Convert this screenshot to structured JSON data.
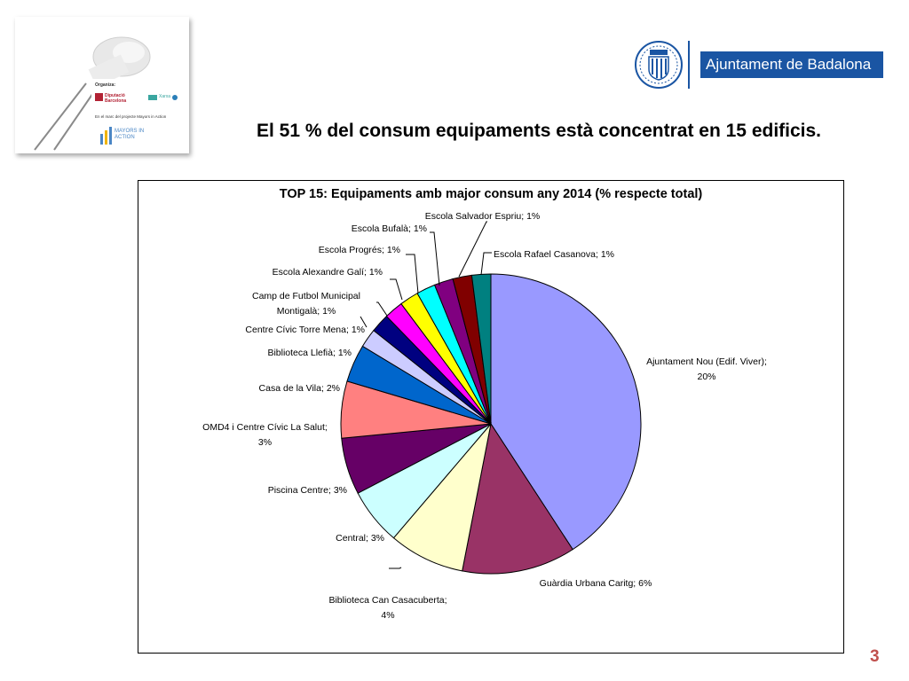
{
  "thumbnail": {
    "organiza_label": "Organiza:",
    "org1": "Diputació Barcelona",
    "org2": "Xarxa",
    "note": "En el marc del projecte Mayors in Action",
    "logo_text": "MAYORS IN ACTION"
  },
  "header": {
    "brand": "Ajuntament de Badalona",
    "title": "El 51 % del consum equipaments està concentrat en 15 edificis."
  },
  "page_number": "3",
  "colors": {
    "brand_blue": "#1a55a3",
    "page_number": "#c0504d"
  },
  "chart_data": {
    "type": "pie",
    "title": "TOP 15: Equipaments amb major consum any 2014 (% respecte total)",
    "slices": [
      {
        "name": "Ajuntament Nou (Edif. Viver)",
        "value": 20,
        "label": "Ajuntament Nou (Edif. Viver);",
        "label2": "20%",
        "color": "#9999ff"
      },
      {
        "name": "Guàrdia Urbana Caritg",
        "value": 6,
        "label": "Guàrdia Urbana Caritg; 6%",
        "color": "#993366"
      },
      {
        "name": "Biblioteca Can Casacuberta",
        "value": 4,
        "label": "Biblioteca Can Casacuberta;",
        "label2": "4%",
        "color": "#ffffcc"
      },
      {
        "name": "Central",
        "value": 3,
        "label": "Central; 3%",
        "color": "#ccffff"
      },
      {
        "name": "Piscina Centre",
        "value": 3,
        "label": "Piscina Centre; 3%",
        "color": "#660066"
      },
      {
        "name": "OMD4 i Centre Cívic La Salut",
        "value": 3,
        "label": "OMD4 i Centre Cívic La Salut;",
        "label2": "3%",
        "color": "#ff8080"
      },
      {
        "name": "Casa de la Vila",
        "value": 2,
        "label": "Casa de la Vila; 2%",
        "color": "#0066cc"
      },
      {
        "name": "Biblioteca Llefià",
        "value": 1,
        "label": "Biblioteca Llefià; 1%",
        "color": "#ccccff"
      },
      {
        "name": "Centre Cívic Torre Mena",
        "value": 1,
        "label": "Centre Cívic Torre Mena; 1%",
        "color": "#000080"
      },
      {
        "name": "Camp de Futbol Municipal Montigalà",
        "value": 1,
        "label": "Camp de Futbol Municipal",
        "label2": "Montigalà; 1%",
        "color": "#ff00ff"
      },
      {
        "name": "Escola Alexandre Galí",
        "value": 1,
        "label": "Escola Alexandre Galí; 1%",
        "color": "#ffff00"
      },
      {
        "name": "Escola Progrés",
        "value": 1,
        "label": "Escola Progrés; 1%",
        "color": "#00ffff"
      },
      {
        "name": "Escola Bufalà",
        "value": 1,
        "label": "Escola Bufalà; 1%",
        "color": "#800080"
      },
      {
        "name": "Escola Salvador Espriu",
        "value": 1,
        "label": "Escola Salvador Espriu; 1%",
        "color": "#800000"
      },
      {
        "name": "Escola Rafael Casanova",
        "value": 1,
        "label": "Escola Rafael Casanova; 1%",
        "color": "#008080"
      }
    ],
    "legend": "none"
  }
}
